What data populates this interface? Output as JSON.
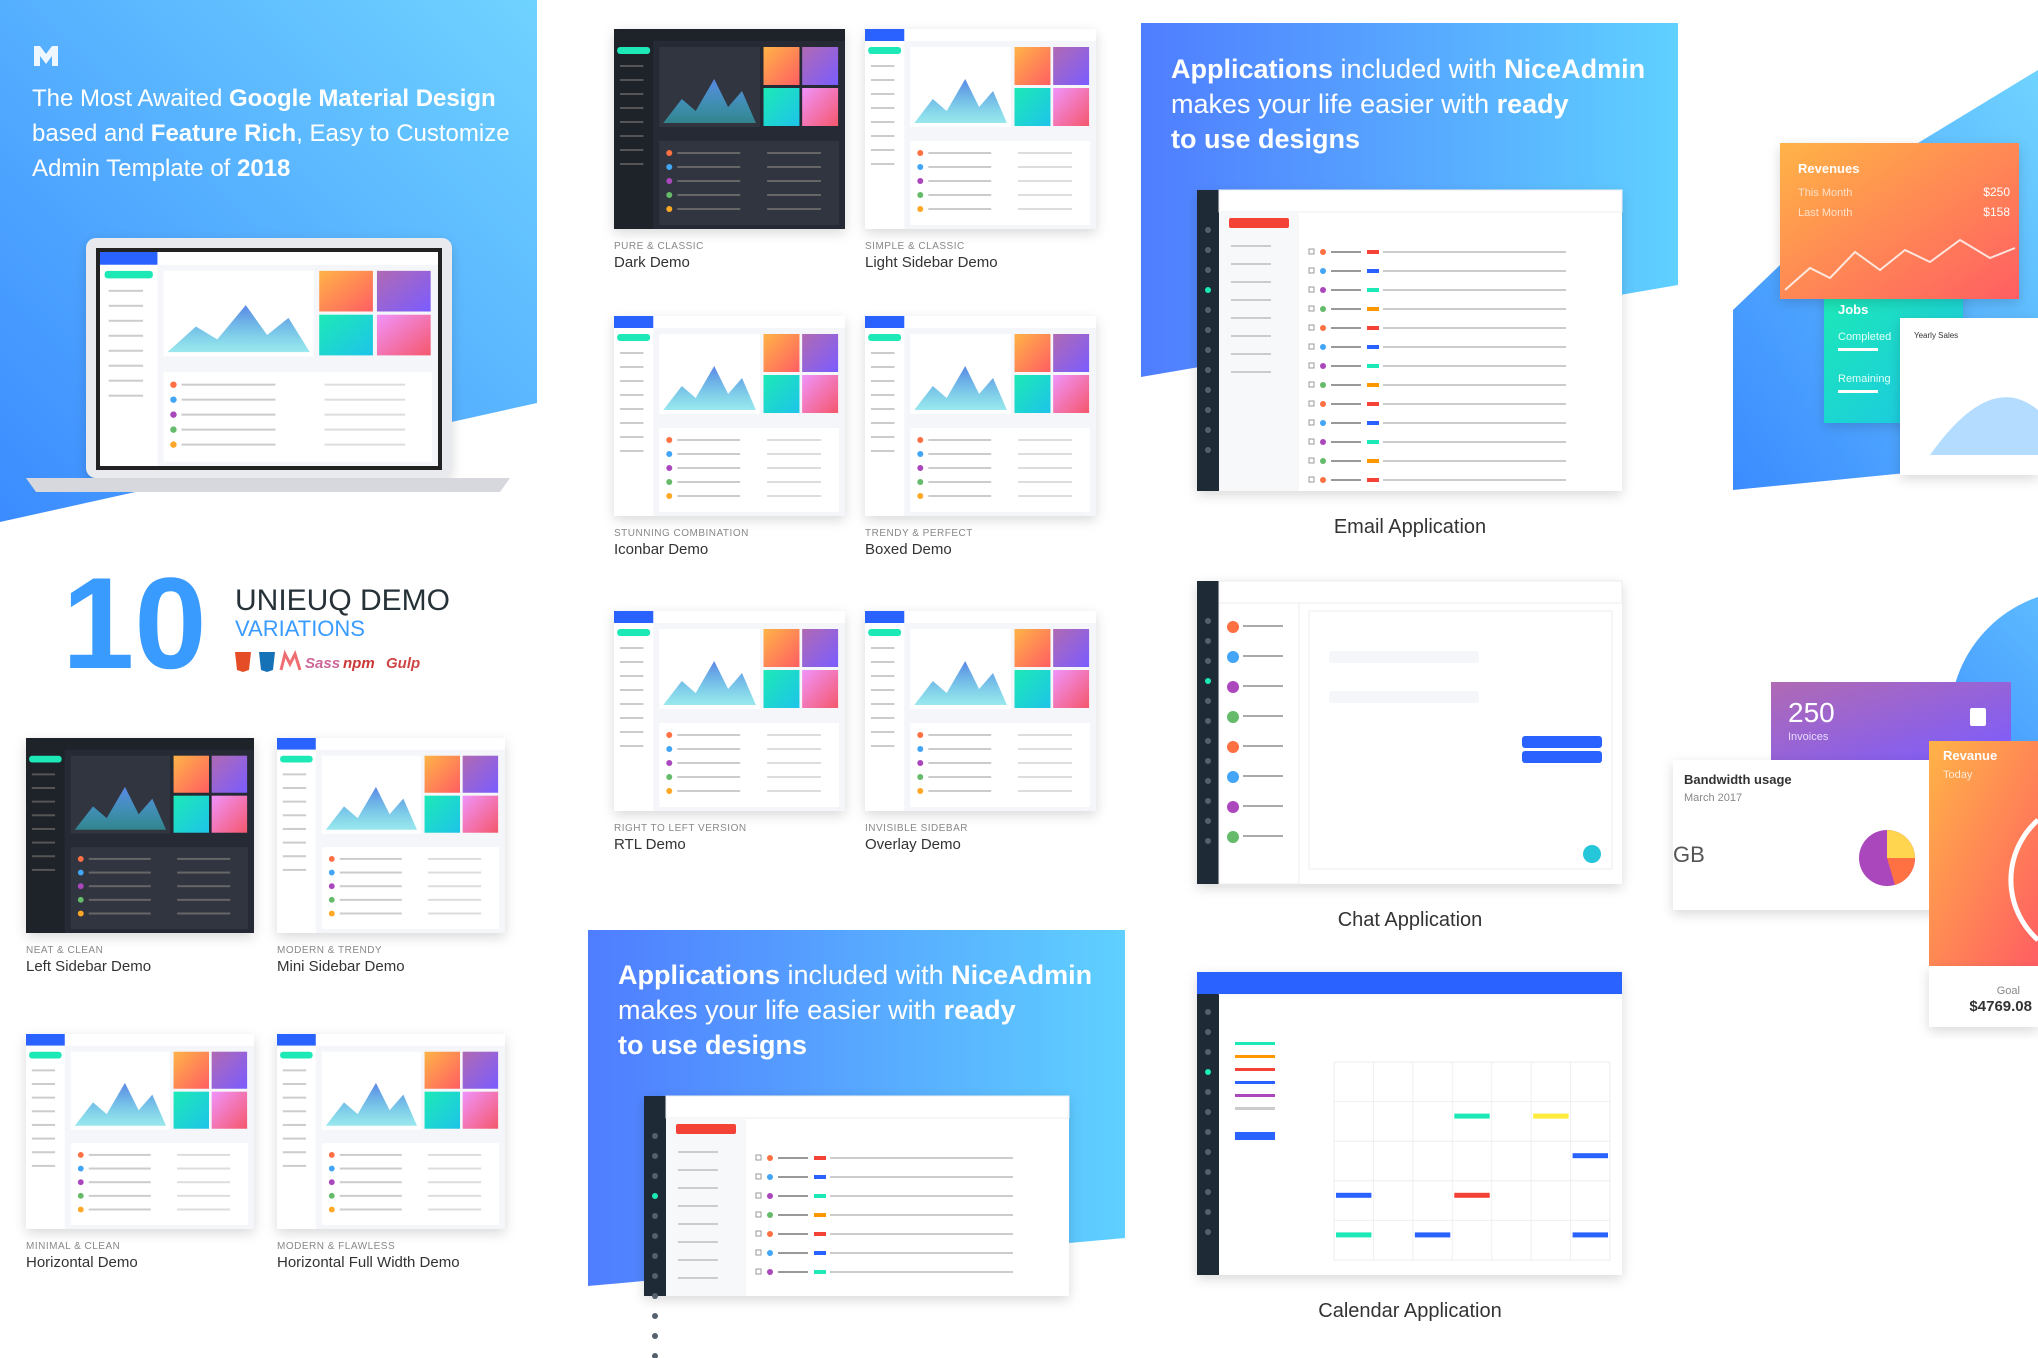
{
  "hero": {
    "lines": [
      [
        {
          "text": "The Most Awaited "
        },
        {
          "text": "Google Material Design",
          "bold": true
        }
      ],
      [
        {
          "text": "based and "
        },
        {
          "text": "Feature Rich",
          "bold": true
        },
        {
          "text": ", Easy to Customize"
        }
      ],
      [
        {
          "text": "Admin Template of "
        },
        {
          "text": "2018",
          "bold": true
        }
      ]
    ]
  },
  "variations": {
    "count": "10",
    "title": "UNIEUQ DEMO",
    "subtitle": "VARIATIONS",
    "tech": [
      "Sass",
      "npm",
      "Gulp"
    ]
  },
  "demos": [
    {
      "tag": "PURE & CLASSIC",
      "name": "Dark Demo",
      "theme": "dark"
    },
    {
      "tag": "SIMPLE & CLASSIC",
      "name": "Light Sidebar Demo",
      "theme": "light"
    },
    {
      "tag": "STUNNING COMBINATION",
      "name": "Iconbar Demo",
      "theme": "light"
    },
    {
      "tag": "TRENDY & PERFECT",
      "name": "Boxed Demo",
      "theme": "light"
    },
    {
      "tag": "RIGHT TO LEFT VERSION",
      "name": "RTL Demo",
      "theme": "light"
    },
    {
      "tag": "INVISIBLE SIDEBAR",
      "name": "Overlay Demo",
      "theme": "light"
    },
    {
      "tag": "NEAT & CLEAN",
      "name": "Left Sidebar Demo",
      "theme": "dark"
    },
    {
      "tag": "MODERN & TRENDY",
      "name": "Mini Sidebar Demo",
      "theme": "light"
    },
    {
      "tag": "MINIMAL & CLEAN",
      "name": "Horizontal Demo",
      "theme": "light"
    },
    {
      "tag": "MODERN & FLAWLESS",
      "name": "Horizontal Full Width Demo",
      "theme": "light"
    }
  ],
  "banners": [
    {
      "lines": [
        [
          {
            "text": "Applications",
            "bold": true
          },
          {
            "text": " included with "
          },
          {
            "text": "NiceAdmin",
            "bold": true
          }
        ],
        [
          {
            "text": "makes your life easier with "
          },
          {
            "text": "ready",
            "bold": true
          }
        ],
        [
          {
            "text": "to use designs",
            "bold": true
          }
        ]
      ]
    },
    {
      "lines": [
        [
          {
            "text": "Applications",
            "bold": true
          },
          {
            "text": " included with "
          },
          {
            "text": "NiceAdmin",
            "bold": true
          }
        ],
        [
          {
            "text": "makes your life easier with "
          },
          {
            "text": "ready",
            "bold": true
          }
        ],
        [
          {
            "text": "to use designs",
            "bold": true
          }
        ]
      ]
    }
  ],
  "apps": [
    {
      "name": "Email Application",
      "kind": "email"
    },
    {
      "name": "Chat Application",
      "kind": "chat"
    },
    {
      "name": "Calendar Application",
      "kind": "calendar"
    }
  ],
  "widgets": {
    "revenues": {
      "title": "Revenues",
      "rows": [
        [
          "This Month",
          "$250"
        ],
        [
          "Last Month",
          "$158"
        ]
      ]
    },
    "jobs": {
      "title": "Jobs",
      "items": [
        "Completed",
        "Remaining"
      ]
    },
    "yearly": {
      "title": "Yearly Sales"
    },
    "invoices": {
      "value": "250",
      "label": "Invoices"
    },
    "bandwidth": {
      "title": "Bandwidth usage",
      "date": "March 2017",
      "unit": "GB"
    },
    "revenue": {
      "title": "Revanue",
      "sub": "Today",
      "goal_label": "Goal",
      "goal": "$4769.08"
    }
  }
}
